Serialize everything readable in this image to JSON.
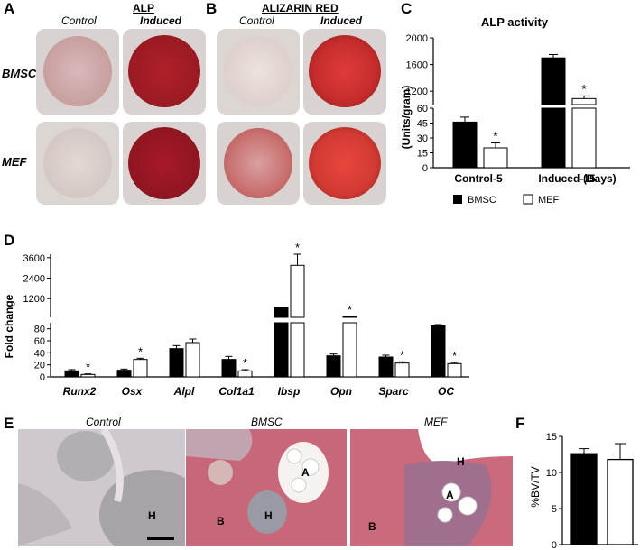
{
  "panel_letters": {
    "a": "A",
    "b": "B",
    "c": "C",
    "d": "D",
    "e": "E",
    "f": "F"
  },
  "panel_a": {
    "title": "ALP",
    "col_labels": [
      "Control",
      "Induced"
    ],
    "row_labels": [
      "BMSC",
      "MEF"
    ]
  },
  "panel_b": {
    "title": "ALIZARIN RED",
    "col_labels": [
      "Control",
      "Induced"
    ]
  },
  "panel_e": {
    "labels": [
      "Control",
      "BMSC",
      "MEF"
    ],
    "annotations": [
      "H",
      "A",
      "H",
      "B",
      "H",
      "A",
      "B"
    ]
  },
  "legend": {
    "bmsc": "BMSC",
    "mef": "MEF"
  },
  "chart_data": [
    {
      "id": "C",
      "type": "bar",
      "title": "ALP activity",
      "ylabel": "(Units/gram)",
      "xlabel": "(Days)",
      "categories": [
        "Control-5",
        "Induced-15"
      ],
      "series": [
        {
          "name": "BMSC",
          "values": [
            46,
            1700
          ],
          "errors": [
            5,
            50
          ],
          "color": "#000000"
        },
        {
          "name": "MEF",
          "values": [
            20,
            1090
          ],
          "errors": [
            5,
            40
          ],
          "color": "#ffffff"
        }
      ],
      "significance": [
        "*",
        "*"
      ],
      "broken_axis": {
        "lower": [
          0,
          60
        ],
        "upper": [
          1000,
          2000
        ]
      },
      "yticks_lower": [
        "0",
        "15",
        "30",
        "45",
        "60"
      ],
      "yticks_upper": [
        "1200",
        "1600",
        "2000"
      ]
    },
    {
      "id": "D",
      "type": "bar",
      "ylabel": "Fold change",
      "categories": [
        "Runx2",
        "Osx",
        "Alpl",
        "Col1a1",
        "Ibsp",
        "Opn",
        "Sparc",
        "OC"
      ],
      "series": [
        {
          "name": "BMSC",
          "values": [
            10,
            11,
            47,
            29,
            700,
            35,
            33,
            85
          ],
          "errors": [
            2,
            2,
            5,
            5,
            0,
            3,
            3,
            2
          ],
          "color": "#000000"
        },
        {
          "name": "MEF",
          "values": [
            4,
            29,
            57,
            10,
            3150,
            150,
            23,
            22
          ],
          "errors": [
            1,
            2,
            6,
            2,
            650,
            0,
            2,
            2
          ],
          "color": "#ffffff"
        }
      ],
      "significance": [
        "*",
        "*",
        "",
        "*",
        "*",
        "*",
        "*",
        "*"
      ],
      "broken_axis": {
        "lower": [
          0,
          90
        ],
        "upper": [
          100,
          3800
        ]
      },
      "yticks_lower": [
        "0",
        "20",
        "40",
        "60",
        "80"
      ],
      "yticks_upper": [
        "1200",
        "2400",
        "3600"
      ]
    },
    {
      "id": "F",
      "type": "bar",
      "ylabel": "%BV/TV",
      "categories": [
        "BMSC",
        "MEF"
      ],
      "values": [
        12.6,
        11.8
      ],
      "errors": [
        0.7,
        2.2
      ],
      "colors": [
        "#000000",
        "#ffffff"
      ],
      "ylim": [
        0,
        15
      ],
      "yticks": [
        "0",
        "5",
        "10",
        "15"
      ]
    }
  ]
}
